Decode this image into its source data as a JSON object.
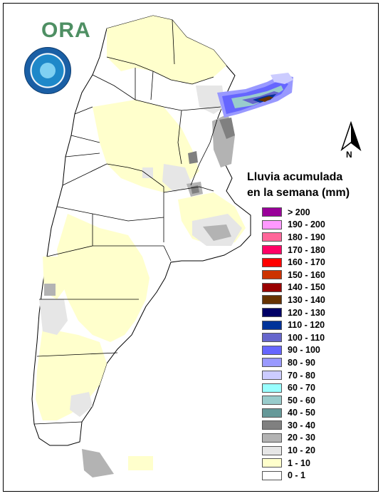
{
  "brand": {
    "logo_text": "ORA"
  },
  "north_label": "N",
  "legend": {
    "title_line1": "Lluvia acumulada",
    "title_line2": "en la semana (mm)",
    "classes": [
      {
        "label": "> 200",
        "color": "#990099"
      },
      {
        "label": "190 - 200",
        "color": "#ff99ff"
      },
      {
        "label": "180 - 190",
        "color": "#ff6699"
      },
      {
        "label": "170 - 180",
        "color": "#ff0066"
      },
      {
        "label": "160 - 170",
        "color": "#ff0000"
      },
      {
        "label": "150 - 160",
        "color": "#cc3300"
      },
      {
        "label": "140 - 150",
        "color": "#990000"
      },
      {
        "label": "130 - 140",
        "color": "#663300"
      },
      {
        "label": "120 - 130",
        "color": "#000066"
      },
      {
        "label": "110 - 120",
        "color": "#003399"
      },
      {
        "label": "100 - 110",
        "color": "#6666cc"
      },
      {
        "label": "90 - 100",
        "color": "#6666ff"
      },
      {
        "label": "80 - 90",
        "color": "#9999ff"
      },
      {
        "label": "70 - 80",
        "color": "#ccccff"
      },
      {
        "label": "60 - 70",
        "color": "#99ffff"
      },
      {
        "label": "50 - 60",
        "color": "#99cccc"
      },
      {
        "label": "40 - 50",
        "color": "#669999"
      },
      {
        "label": "30 - 40",
        "color": "#808080"
      },
      {
        "label": "20 - 30",
        "color": "#b3b3b3"
      },
      {
        "label": "10 - 20",
        "color": "#e6e6e6"
      },
      {
        "label": "1 - 10",
        "color": "#ffffcc"
      },
      {
        "label": "0 - 1",
        "color": "#ffffff"
      }
    ]
  }
}
